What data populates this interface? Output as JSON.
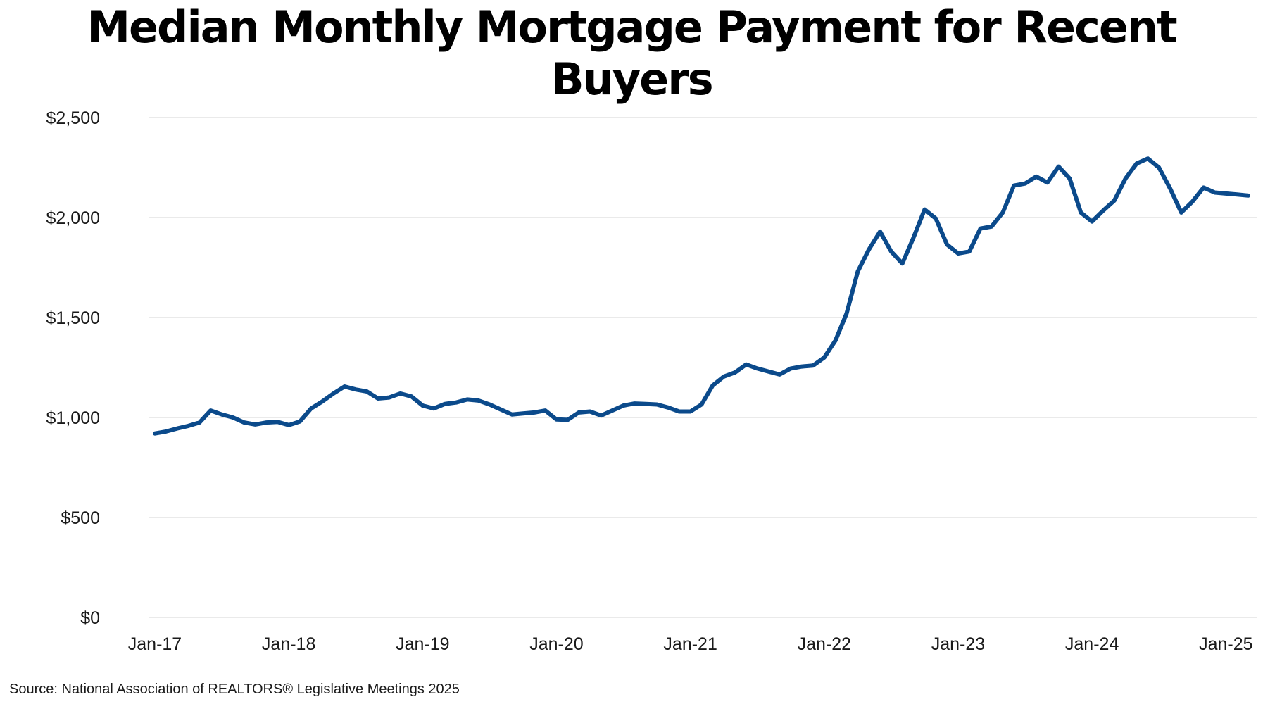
{
  "chart_data": {
    "type": "line",
    "title": "Median Monthly Mortgage Payment for Recent Buyers",
    "source": "Source: National Association of REALTORS® Legislative Meetings 2025",
    "x_start": "2017-01",
    "x_end": "2025-03",
    "x_ticks": [
      "Jan-17",
      "Jan-18",
      "Jan-19",
      "Jan-20",
      "Jan-21",
      "Jan-22",
      "Jan-23",
      "Jan-24",
      "Jan-25"
    ],
    "y_ticks": [
      "$0",
      "$500",
      "$1,000",
      "$1,500",
      "$2,000",
      "$2,500"
    ],
    "ylim": [
      0,
      2500
    ],
    "grid": true,
    "legend": "none",
    "line_color": "#0b4a8b",
    "x": [
      "2017-01",
      "2017-02",
      "2017-03",
      "2017-04",
      "2017-05",
      "2017-06",
      "2017-07",
      "2017-08",
      "2017-09",
      "2017-10",
      "2017-11",
      "2017-12",
      "2018-01",
      "2018-02",
      "2018-03",
      "2018-04",
      "2018-05",
      "2018-06",
      "2018-07",
      "2018-08",
      "2018-09",
      "2018-10",
      "2018-11",
      "2018-12",
      "2019-01",
      "2019-02",
      "2019-03",
      "2019-04",
      "2019-05",
      "2019-06",
      "2019-07",
      "2019-08",
      "2019-09",
      "2019-10",
      "2019-11",
      "2019-12",
      "2020-01",
      "2020-02",
      "2020-03",
      "2020-04",
      "2020-05",
      "2020-06",
      "2020-07",
      "2020-08",
      "2020-09",
      "2020-10",
      "2020-11",
      "2020-12",
      "2021-01",
      "2021-02",
      "2021-03",
      "2021-04",
      "2021-05",
      "2021-06",
      "2021-07",
      "2021-08",
      "2021-09",
      "2021-10",
      "2021-11",
      "2021-12",
      "2022-01",
      "2022-02",
      "2022-03",
      "2022-04",
      "2022-05",
      "2022-06",
      "2022-07",
      "2022-08",
      "2022-09",
      "2022-10",
      "2022-11",
      "2022-12",
      "2023-01",
      "2023-02",
      "2023-03",
      "2023-04",
      "2023-05",
      "2023-06",
      "2023-07",
      "2023-08",
      "2023-09",
      "2023-10",
      "2023-11",
      "2023-12",
      "2024-01",
      "2024-02",
      "2024-03",
      "2024-04",
      "2024-05",
      "2024-06",
      "2024-07",
      "2024-08",
      "2024-09",
      "2024-10",
      "2024-11",
      "2024-12",
      "2025-01",
      "2025-02",
      "2025-03"
    ],
    "values": [
      920,
      930,
      945,
      958,
      975,
      1035,
      1015,
      1000,
      975,
      965,
      975,
      978,
      962,
      980,
      1045,
      1080,
      1120,
      1155,
      1140,
      1130,
      1095,
      1100,
      1120,
      1105,
      1060,
      1045,
      1068,
      1075,
      1090,
      1085,
      1065,
      1040,
      1015,
      1020,
      1025,
      1035,
      990,
      988,
      1025,
      1030,
      1010,
      1035,
      1060,
      1070,
      1068,
      1065,
      1050,
      1030,
      1030,
      1065,
      1160,
      1205,
      1225,
      1265,
      1245,
      1230,
      1215,
      1245,
      1255,
      1260,
      1300,
      1385,
      1520,
      1730,
      1840,
      1930,
      1830,
      1770,
      1900,
      2040,
      1995,
      1865,
      1820,
      1830,
      1945,
      1955,
      2025,
      2160,
      2170,
      2205,
      2175,
      2255,
      2195,
      2025,
      1980,
      2035,
      2085,
      2195,
      2270,
      2295,
      2250,
      2145,
      2025,
      2080,
      2150,
      2125,
      2120,
      2115,
      2110
    ]
  }
}
